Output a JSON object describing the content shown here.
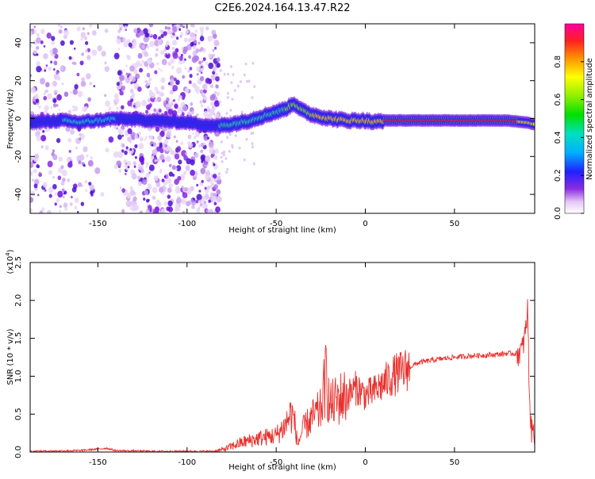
{
  "title": "C2E6.2024.164.13.47.R22",
  "chart_data": [
    {
      "type": "heatmap",
      "xlabel": "Height of straight line (km)",
      "ylabel": "Frequency (Hz)",
      "xlim": [
        -188,
        95
      ],
      "ylim": [
        -50,
        50
      ],
      "xticks": [
        -150,
        -100,
        -50,
        0,
        50
      ],
      "yticks": [
        -40,
        -20,
        0,
        20,
        40
      ],
      "ridge_x": [
        -188,
        -170,
        -160,
        -150,
        -140,
        -120,
        -100,
        -85,
        -75,
        -65,
        -55,
        -45,
        -40,
        -35,
        -30,
        -20,
        -10,
        0,
        5,
        10,
        20,
        40,
        60,
        80,
        90,
        95
      ],
      "ridge_freq": [
        -2,
        -1,
        -2,
        -1,
        0,
        -1,
        -2,
        -4,
        -3,
        -1,
        2,
        5,
        8,
        4,
        2,
        0,
        -1,
        -1,
        -2,
        -1,
        -1,
        -1,
        -1,
        -1,
        -2,
        -3
      ],
      "noise_region_x": [
        -188,
        -82
      ],
      "colorbar": {
        "label": "Normalized spectral amplitude",
        "range": [
          0,
          1
        ],
        "ticks": [
          0.0,
          0.2,
          0.4,
          0.6,
          0.8
        ],
        "tick_labels": [
          "0.0",
          "0.2",
          "0.4",
          "0.6",
          "0.8"
        ]
      }
    },
    {
      "type": "line",
      "xlabel": "Height of straight line (km)",
      "ylabel": "SNR (10 * v/v)",
      "y_multiplier_label": "(x10",
      "y_multiplier_exp": "4",
      "xlim": [
        -188,
        95
      ],
      "ylim": [
        0,
        2.5
      ],
      "xticks": [
        -150,
        -100,
        -50,
        0,
        50
      ],
      "yticks": [
        0.0,
        0.5,
        1.0,
        1.5,
        2.0,
        2.5
      ],
      "ytick_labels": [
        "0.0",
        "0.5",
        "1.0",
        "1.5",
        "2.0",
        "2.5"
      ],
      "line_color": "#e8302c",
      "x": [
        -188,
        -160,
        -145,
        -140,
        -120,
        -100,
        -85,
        -80,
        -70,
        -60,
        -50,
        -45,
        -42,
        -40,
        -38,
        -35,
        -30,
        -25,
        -22,
        -20,
        -15,
        -10,
        -5,
        0,
        5,
        10,
        15,
        20,
        25,
        30,
        40,
        50,
        60,
        70,
        80,
        85,
        88,
        90,
        91,
        92,
        93,
        95
      ],
      "snr": [
        0.01,
        0.02,
        0.05,
        0.02,
        0.01,
        0.01,
        0.01,
        0.03,
        0.12,
        0.18,
        0.22,
        0.35,
        0.5,
        0.45,
        0.1,
        0.3,
        0.45,
        0.55,
        1.0,
        0.6,
        0.7,
        0.75,
        0.85,
        0.75,
        0.8,
        0.9,
        1.0,
        1.05,
        1.12,
        1.18,
        1.22,
        1.25,
        1.27,
        1.28,
        1.3,
        1.3,
        1.35,
        1.6,
        1.9,
        0.8,
        0.3,
        0.25
      ]
    }
  ]
}
